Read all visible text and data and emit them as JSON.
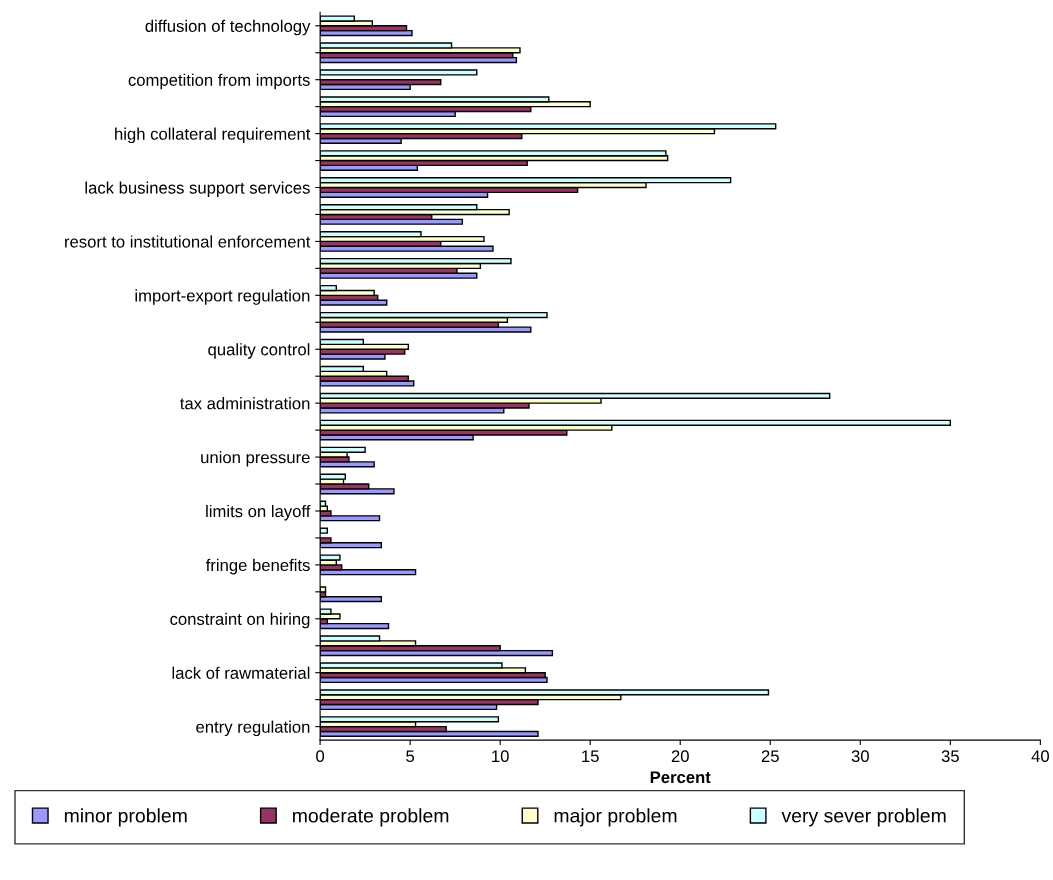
{
  "chart_data": {
    "type": "bar",
    "orientation": "horizontal",
    "xlabel": "Percent",
    "categories": [
      "diffusion of technology",
      null,
      "competition from imports",
      null,
      "high collateral requirement",
      null,
      "lack business support services",
      null,
      "resort to institutional enforcement",
      null,
      "import-export regulation",
      null,
      "quality control",
      null,
      "tax administration",
      null,
      "union pressure",
      null,
      "limits on layoff",
      null,
      "fringe benefits",
      null,
      "constraint on hiring",
      null,
      "lack of rawmaterial",
      null,
      "entry regulation"
    ],
    "series": [
      {
        "name": "minor problem",
        "color": "#9999ff",
        "values": [
          5.1,
          10.9,
          5.0,
          7.5,
          4.5,
          5.4,
          9.3,
          7.9,
          9.6,
          8.7,
          3.7,
          11.7,
          3.6,
          5.2,
          10.2,
          8.5,
          3.0,
          4.1,
          3.3,
          3.4,
          5.3,
          3.4,
          3.8,
          12.9,
          12.6,
          9.8,
          12.1
        ]
      },
      {
        "name": "moderate problem",
        "color": "#993366",
        "values": [
          4.8,
          10.7,
          6.7,
          11.7,
          11.2,
          11.5,
          14.3,
          6.2,
          6.7,
          7.6,
          3.2,
          9.9,
          4.7,
          4.9,
          11.6,
          13.7,
          1.6,
          2.7,
          0.6,
          0.6,
          1.2,
          0.3,
          0.4,
          10.0,
          12.5,
          12.1,
          7.0
        ]
      },
      {
        "name": "major problem",
        "color": "#ffffcc",
        "values": [
          2.9,
          11.1,
          null,
          15.0,
          21.9,
          19.3,
          18.1,
          10.5,
          9.1,
          8.9,
          3.0,
          10.4,
          4.9,
          3.7,
          15.6,
          16.2,
          1.5,
          1.3,
          0.4,
          null,
          0.9,
          0.3,
          1.1,
          5.3,
          11.4,
          16.7,
          5.3
        ]
      },
      {
        "name": "very sever problem",
        "color": "#ccffff",
        "values": [
          1.9,
          7.3,
          8.7,
          12.7,
          25.3,
          19.2,
          22.8,
          8.7,
          5.6,
          10.6,
          0.9,
          12.6,
          2.4,
          2.4,
          28.3,
          35.0,
          2.5,
          1.4,
          0.3,
          0.4,
          1.1,
          null,
          0.6,
          3.3,
          10.1,
          24.9,
          9.9
        ]
      }
    ],
    "xlim": [
      0,
      40
    ],
    "xticks": [
      0,
      5,
      10,
      15,
      20,
      25,
      30,
      35,
      40
    ],
    "grid": false,
    "legend": "bottom"
  }
}
